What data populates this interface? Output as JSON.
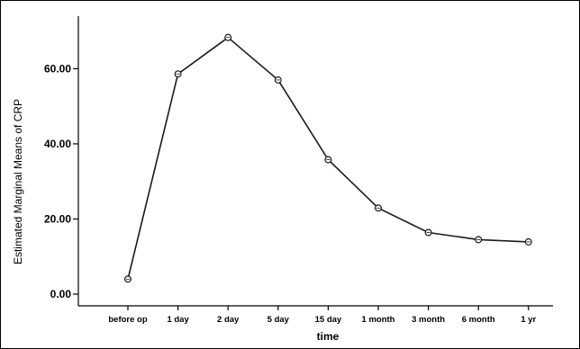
{
  "chart_data": {
    "type": "line",
    "xlabel": "time",
    "ylabel": "Estimated Marginal Means of CRP",
    "categories": [
      "before op",
      "1 day",
      "2 day",
      "5 day",
      "15 day",
      "1 month",
      "3 month",
      "6 month",
      "1 yr"
    ],
    "series": [
      {
        "values": [
          4.0,
          58.6,
          68.3,
          57.0,
          35.8,
          22.9,
          16.4,
          14.5,
          13.9
        ]
      }
    ],
    "yticks": [
      0,
      20,
      40,
      60
    ],
    "ytick_labels": [
      "0.00",
      "20.00",
      "40.00",
      "60.00"
    ],
    "ylim": [
      -3.0,
      75.0
    ],
    "grid": false,
    "legend": "none",
    "colors": {
      "line": "#1a1a1a",
      "marker_fill": "#ffffff"
    }
  }
}
